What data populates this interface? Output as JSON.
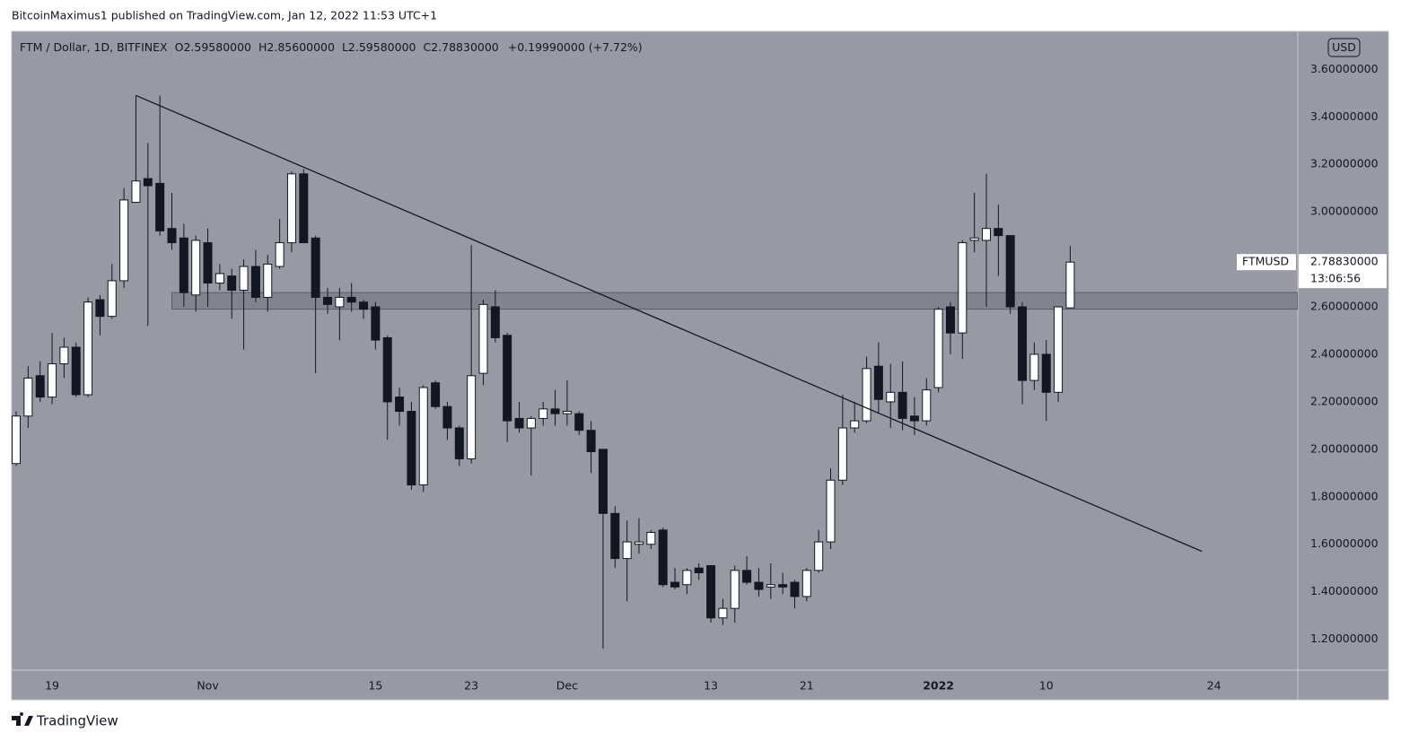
{
  "publication": "BitcoinMaximus1 published on TradingView.com, Jan 12, 2022 11:53 UTC+1",
  "footer_brand": "TradingView",
  "chart_data": {
    "type": "candlestick",
    "symbol": "FTM / Dollar, 1D, BITFINEX",
    "ohlc_legend": [
      {
        "label": "O",
        "value": "2.59580000"
      },
      {
        "label": "H",
        "value": "2.85600000"
      },
      {
        "label": "L",
        "value": "2.59580000"
      },
      {
        "label": "C",
        "value": "2.78830000"
      }
    ],
    "change": "+0.19990000 (+7.72%)",
    "currency": "USD",
    "price_tag": {
      "name": "FTMUSD",
      "price": "2.78830000",
      "countdown": "13:06:56"
    },
    "up_color": "#ffffff",
    "down_color": "#131722",
    "x": [
      "Oct 16",
      "Oct 17",
      "Oct 18",
      "Oct 19",
      "Oct 20",
      "Oct 21",
      "Oct 22",
      "Oct 23",
      "Oct 24",
      "Oct 25",
      "Oct 26",
      "Oct 27",
      "Oct 28",
      "Oct 29",
      "Oct 30",
      "Oct 31",
      "Nov 1",
      "Nov 2",
      "Nov 3",
      "Nov 4",
      "Nov 5",
      "Nov 6",
      "Nov 7",
      "Nov 8",
      "Nov 9",
      "Nov 10",
      "Nov 11",
      "Nov 12",
      "Nov 13",
      "Nov 14",
      "Nov 15",
      "Nov 16",
      "Nov 17",
      "Nov 18",
      "Nov 19",
      "Nov 20",
      "Nov 21",
      "Nov 22",
      "Nov 23",
      "Nov 24",
      "Nov 25",
      "Nov 26",
      "Nov 27",
      "Nov 28",
      "Nov 29",
      "Nov 30",
      "Dec 1",
      "Dec 2",
      "Dec 3",
      "Dec 4",
      "Dec 5",
      "Dec 6",
      "Dec 7",
      "Dec 8",
      "Dec 9",
      "Dec 10",
      "Dec 11",
      "Dec 12",
      "Dec 13",
      "Dec 14",
      "Dec 15",
      "Dec 16",
      "Dec 17",
      "Dec 18",
      "Dec 19",
      "Dec 20",
      "Dec 21",
      "Dec 22",
      "Dec 23",
      "Dec 24",
      "Dec 25",
      "Dec 26",
      "Dec 27",
      "Dec 28",
      "Dec 29",
      "Dec 30",
      "Dec 31",
      "Jan 1",
      "Jan 2",
      "Jan 3",
      "Jan 4",
      "Jan 5",
      "Jan 6",
      "Jan 7",
      "Jan 8",
      "Jan 9",
      "Jan 10",
      "Jan 11",
      "Jan 12"
    ],
    "open": [
      1.94,
      2.14,
      2.31,
      2.22,
      2.36,
      2.43,
      2.23,
      2.63,
      2.56,
      2.71,
      3.04,
      3.14,
      3.12,
      2.93,
      2.89,
      2.65,
      2.87,
      2.7,
      2.73,
      2.67,
      2.77,
      2.64,
      2.77,
      2.87,
      3.16,
      2.89,
      2.64,
      2.6,
      2.64,
      2.62,
      2.6,
      2.47,
      2.22,
      2.16,
      1.85,
      2.28,
      2.18,
      2.09,
      1.96,
      2.32,
      2.6,
      2.48,
      2.13,
      2.09,
      2.13,
      2.17,
      2.15,
      2.15,
      2.08,
      2.0,
      1.73,
      1.54,
      1.6,
      1.6,
      1.66,
      1.44,
      1.43,
      1.5,
      1.51,
      1.29,
      1.33,
      1.49,
      1.44,
      1.42,
      1.43,
      1.44,
      1.38,
      1.49,
      1.61,
      1.87,
      2.09,
      2.12,
      2.35,
      2.2,
      2.24,
      2.14,
      2.12,
      2.26,
      2.6,
      2.49,
      2.88,
      2.88,
      2.93,
      2.9,
      2.6,
      2.29,
      2.4,
      2.24,
      2.5958
    ],
    "high": [
      2.16,
      2.35,
      2.37,
      2.49,
      2.47,
      2.45,
      2.64,
      2.65,
      2.78,
      3.1,
      3.49,
      3.29,
      3.49,
      3.08,
      2.95,
      2.9,
      2.93,
      2.78,
      2.76,
      2.8,
      2.84,
      2.82,
      2.97,
      3.17,
      3.18,
      2.9,
      2.68,
      2.68,
      2.7,
      2.63,
      2.62,
      2.48,
      2.26,
      2.2,
      2.27,
      2.29,
      2.2,
      2.1,
      2.86,
      2.63,
      2.67,
      2.49,
      2.2,
      2.14,
      2.2,
      2.25,
      2.29,
      2.16,
      2.12,
      2.0,
      1.76,
      1.7,
      1.71,
      1.66,
      1.67,
      1.5,
      1.5,
      1.52,
      1.51,
      1.37,
      1.51,
      1.55,
      1.5,
      1.52,
      1.48,
      1.45,
      1.5,
      1.66,
      1.92,
      2.23,
      2.2,
      2.39,
      2.45,
      2.36,
      2.37,
      2.22,
      2.3,
      2.6,
      2.62,
      2.88,
      3.08,
      3.16,
      3.03,
      2.9,
      2.62,
      2.45,
      2.46,
      2.6,
      2.856
    ],
    "low": [
      1.93,
      2.09,
      2.2,
      2.19,
      2.3,
      2.22,
      2.22,
      2.48,
      2.55,
      2.68,
      3.04,
      2.52,
      2.9,
      2.84,
      2.6,
      2.58,
      2.6,
      2.67,
      2.55,
      2.42,
      2.62,
      2.58,
      2.76,
      2.83,
      2.87,
      2.32,
      2.57,
      2.46,
      2.58,
      2.55,
      2.42,
      2.04,
      2.1,
      1.83,
      1.82,
      2.17,
      2.04,
      1.93,
      1.94,
      2.27,
      2.45,
      2.03,
      2.07,
      1.89,
      2.1,
      2.1,
      2.1,
      2.06,
      1.9,
      1.16,
      1.5,
      1.36,
      1.56,
      1.58,
      1.42,
      1.41,
      1.39,
      1.45,
      1.27,
      1.26,
      1.27,
      1.43,
      1.38,
      1.37,
      1.39,
      1.33,
      1.36,
      1.48,
      1.58,
      1.85,
      2.07,
      2.11,
      2.15,
      2.09,
      2.08,
      2.06,
      2.1,
      2.24,
      2.4,
      2.38,
      2.83,
      2.6,
      2.73,
      2.57,
      2.19,
      2.25,
      2.12,
      2.2,
      2.5958
    ],
    "close": [
      2.14,
      2.3,
      2.22,
      2.36,
      2.43,
      2.23,
      2.62,
      2.56,
      2.71,
      3.05,
      3.13,
      3.11,
      2.92,
      2.87,
      2.66,
      2.88,
      2.7,
      2.74,
      2.67,
      2.77,
      2.64,
      2.78,
      2.87,
      3.16,
      2.87,
      2.64,
      2.61,
      2.64,
      2.62,
      2.59,
      2.46,
      2.2,
      2.16,
      1.85,
      2.26,
      2.18,
      2.09,
      1.96,
      2.31,
      2.61,
      2.47,
      2.12,
      2.09,
      2.13,
      2.17,
      2.15,
      2.16,
      2.08,
      1.99,
      1.73,
      1.54,
      1.61,
      1.61,
      1.65,
      1.43,
      1.42,
      1.49,
      1.48,
      1.29,
      1.33,
      1.49,
      1.44,
      1.41,
      1.43,
      1.42,
      1.38,
      1.49,
      1.61,
      1.87,
      2.09,
      2.12,
      2.34,
      2.21,
      2.24,
      2.13,
      2.12,
      2.25,
      2.59,
      2.49,
      2.87,
      2.89,
      2.93,
      2.9,
      2.6,
      2.29,
      2.4,
      2.24,
      2.6,
      2.7883
    ],
    "xlim": [
      "Oct 16",
      "Jan 31"
    ],
    "ylim": [
      1.07,
      3.76
    ],
    "grid": false,
    "xticks": [
      {
        "value": "Oct 19",
        "label": "19"
      },
      {
        "value": "Nov 1",
        "label": "Nov"
      },
      {
        "value": "Nov 15",
        "label": "15"
      },
      {
        "value": "Nov 23",
        "label": "23"
      },
      {
        "value": "Dec 1",
        "label": "Dec"
      },
      {
        "value": "Dec 13",
        "label": "13"
      },
      {
        "value": "Dec 21",
        "label": "21"
      },
      {
        "value": "Jan 1",
        "label": "2022"
      },
      {
        "value": "Jan 10",
        "label": "10"
      },
      {
        "value": "Jan 24",
        "label": "24"
      }
    ],
    "yticks": [
      {
        "value": 1.2,
        "label": "1.20000000"
      },
      {
        "value": 1.4,
        "label": "1.40000000"
      },
      {
        "value": 1.6,
        "label": "1.60000000"
      },
      {
        "value": 1.8,
        "label": "1.80000000"
      },
      {
        "value": 2.0,
        "label": "2.00000000"
      },
      {
        "value": 2.2,
        "label": "2.20000000"
      },
      {
        "value": 2.4,
        "label": "2.40000000"
      },
      {
        "value": 2.6,
        "label": "2.60000000"
      },
      {
        "value": 2.8,
        "label": "2.80000000"
      },
      {
        "value": 3.0,
        "label": "3.00000000"
      },
      {
        "value": 3.2,
        "label": "3.20000000"
      },
      {
        "value": 3.4,
        "label": "3.40000000"
      },
      {
        "value": 3.6,
        "label": "3.60000000"
      }
    ],
    "trendline": {
      "x": [
        "Oct 26",
        "Jan 23"
      ],
      "y": [
        3.49,
        1.57
      ]
    },
    "zone": {
      "x0": "Oct 29",
      "y": [
        2.59,
        2.66
      ]
    }
  }
}
